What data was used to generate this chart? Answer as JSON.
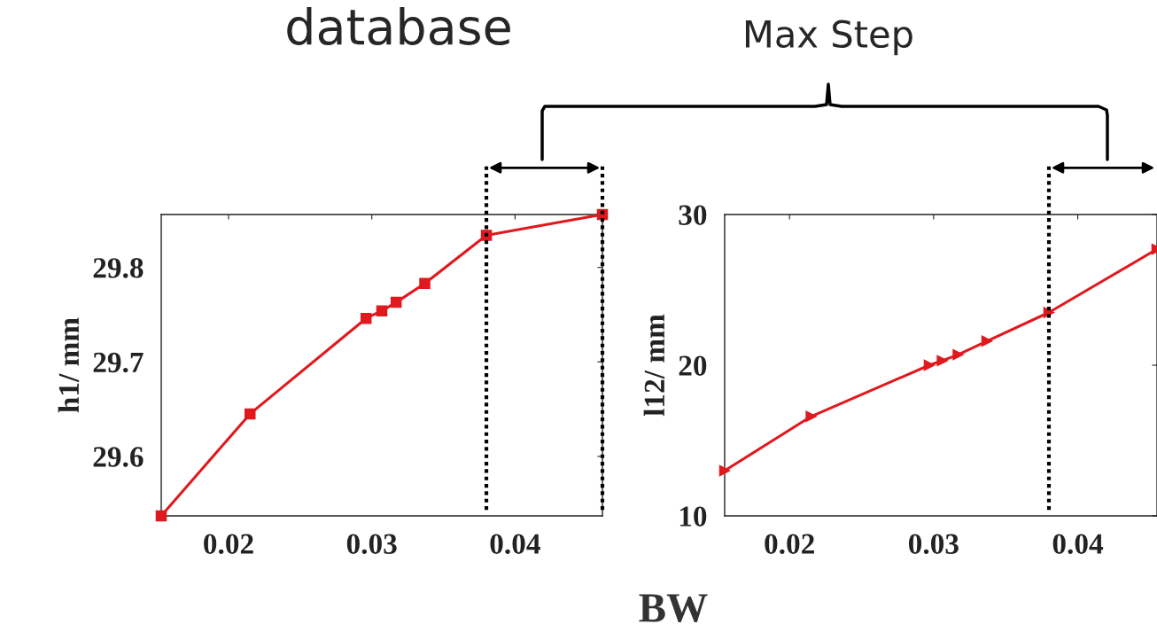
{
  "chart_data": [
    {
      "type": "line",
      "ylabel": "h1/ mm",
      "xlabel": "BW",
      "annotations": [
        "database",
        "Max Step"
      ],
      "xlim": [
        0.0153,
        0.0461
      ],
      "xticks": [
        0.02,
        0.03,
        0.04
      ],
      "ylim": [
        29.537,
        29.856
      ],
      "yticks": [
        29.6,
        29.7,
        29.8
      ],
      "grid": false,
      "marker": "square",
      "line_style": "solid",
      "series": [
        {
          "color": "#e0191e",
          "x": [
            0.0153,
            0.0215,
            0.0296,
            0.0307,
            0.0317,
            0.0337,
            0.038,
            0.0461
          ],
          "values": [
            29.537,
            29.645,
            29.746,
            29.754,
            29.763,
            29.783,
            29.834,
            29.856
          ]
        }
      ],
      "ref_lines": [
        {
          "axis": "x",
          "value": 0.038,
          "color": "#000000",
          "line_style": "dotted"
        },
        {
          "axis": "x",
          "value": 0.0461,
          "color": "#000000",
          "line_style": "dotted"
        }
      ]
    },
    {
      "type": "line",
      "ylabel": "l12/ mm",
      "xlim": [
        0.0155,
        0.0455
      ],
      "xticks": [
        0.02,
        0.03,
        0.04
      ],
      "ylim": [
        10,
        30
      ],
      "yticks": [
        10,
        20,
        30
      ],
      "grid": false,
      "marker": "triangle",
      "line_style": "solid",
      "series": [
        {
          "color": "#e0191e",
          "x": [
            0.0155,
            0.0215,
            0.0297,
            0.0306,
            0.0317,
            0.0337,
            0.038,
            0.0455
          ],
          "values": [
            13.0,
            16.6,
            20.0,
            20.3,
            20.7,
            21.6,
            23.5,
            27.7
          ]
        }
      ],
      "ref_lines": [
        {
          "axis": "x",
          "value": 0.038,
          "color": "#000000",
          "line_style": "dotted"
        }
      ]
    }
  ]
}
